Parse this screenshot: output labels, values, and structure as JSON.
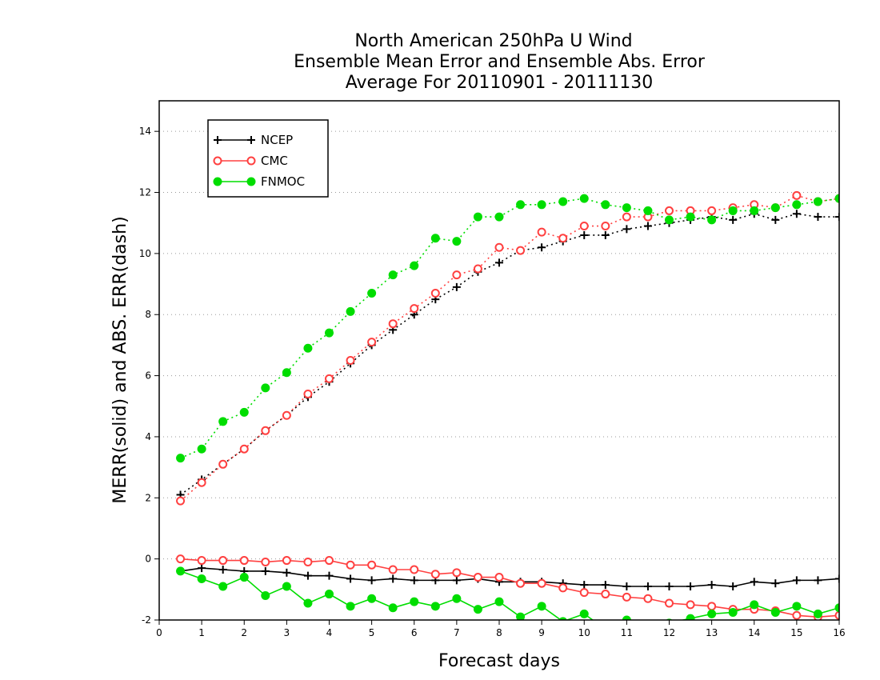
{
  "chart_data": {
    "type": "line",
    "title": [
      "North American 250hPa U Wind",
      "Ensemble Mean Error and Ensemble Abs. Error",
      "Average For 20110901 - 20111130"
    ],
    "xlabel": "Forecast days",
    "ylabel": "MERR(solid) and ABS. ERR(dash)",
    "xlim": [
      0,
      16
    ],
    "ylim": [
      -2,
      15
    ],
    "xticks": [
      0,
      1,
      2,
      3,
      4,
      5,
      6,
      7,
      8,
      9,
      10,
      11,
      12,
      13,
      14,
      15,
      16
    ],
    "yticks": [
      -2,
      0,
      2,
      4,
      6,
      8,
      10,
      12,
      14
    ],
    "ytick_labels": [
      "-2",
      "0",
      "2",
      "4",
      "6",
      "8",
      "10",
      "12",
      "14"
    ],
    "grid": "horizontal dotted",
    "legend_position": "top-left",
    "x": [
      0.5,
      1,
      1.5,
      2,
      2.5,
      3,
      3.5,
      4,
      4.5,
      5,
      5.5,
      6,
      6.5,
      7,
      7.5,
      8,
      8.5,
      9,
      9.5,
      10,
      10.5,
      11,
      11.5,
      12,
      12.5,
      13,
      13.5,
      14,
      14.5,
      15,
      15.5,
      16
    ],
    "series": [
      {
        "name": "NCEP",
        "color": "#000000",
        "marker": "plus",
        "abs_error": [
          2.1,
          2.6,
          3.1,
          3.6,
          4.2,
          4.7,
          5.3,
          5.8,
          6.4,
          7.0,
          7.5,
          8.0,
          8.5,
          8.9,
          9.4,
          9.7,
          10.1,
          10.2,
          10.4,
          10.6,
          10.6,
          10.8,
          10.9,
          11.0,
          11.1,
          11.2,
          11.1,
          11.3,
          11.1,
          11.3,
          11.2,
          11.2
        ],
        "mean_error": [
          -0.4,
          -0.3,
          -0.35,
          -0.4,
          -0.4,
          -0.45,
          -0.55,
          -0.55,
          -0.65,
          -0.7,
          -0.65,
          -0.7,
          -0.7,
          -0.7,
          -0.65,
          -0.75,
          -0.75,
          -0.75,
          -0.8,
          -0.85,
          -0.85,
          -0.9,
          -0.9,
          -0.9,
          -0.9,
          -0.85,
          -0.9,
          -0.75,
          -0.8,
          -0.7,
          -0.7,
          -0.65
        ]
      },
      {
        "name": "CMC",
        "color": "#ff4040",
        "marker": "open-circle",
        "abs_error": [
          1.9,
          2.5,
          3.1,
          3.6,
          4.2,
          4.7,
          5.4,
          5.9,
          6.5,
          7.1,
          7.7,
          8.2,
          8.7,
          9.3,
          9.5,
          10.2,
          10.1,
          10.7,
          10.5,
          10.9,
          10.9,
          11.2,
          11.2,
          11.4,
          11.4,
          11.4,
          11.5,
          11.6,
          11.5,
          11.9,
          11.7,
          11.8
        ],
        "mean_error": [
          0.0,
          -0.05,
          -0.05,
          -0.05,
          -0.1,
          -0.05,
          -0.1,
          -0.05,
          -0.2,
          -0.2,
          -0.35,
          -0.35,
          -0.5,
          -0.45,
          -0.6,
          -0.6,
          -0.8,
          -0.8,
          -0.95,
          -1.1,
          -1.15,
          -1.25,
          -1.3,
          -1.45,
          -1.5,
          -1.55,
          -1.65,
          -1.65,
          -1.7,
          -1.85,
          -1.9,
          -1.85
        ]
      },
      {
        "name": "FNMOC",
        "color": "#00dd00",
        "marker": "filled-circle",
        "abs_error": [
          3.3,
          3.6,
          4.5,
          4.8,
          5.6,
          6.1,
          6.9,
          7.4,
          8.1,
          8.7,
          9.3,
          9.6,
          10.5,
          10.4,
          11.2,
          11.2,
          11.6,
          11.6,
          11.7,
          11.8,
          11.6,
          11.5,
          11.4,
          11.1,
          11.2,
          11.1,
          11.4,
          11.4,
          11.5,
          11.6,
          11.7,
          11.8
        ],
        "mean_error": [
          -0.4,
          -0.65,
          -0.9,
          -0.6,
          -1.2,
          -0.9,
          -1.45,
          -1.15,
          -1.55,
          -1.3,
          -1.6,
          -1.4,
          -1.55,
          -1.3,
          -1.65,
          -1.4,
          -1.9,
          -1.55,
          -2.05,
          -1.8,
          -2.3,
          -2.0,
          -2.2,
          -2.1,
          -1.95,
          -1.8,
          -1.75,
          -1.5,
          -1.75,
          -1.55,
          -1.8,
          -1.6
        ]
      }
    ]
  }
}
